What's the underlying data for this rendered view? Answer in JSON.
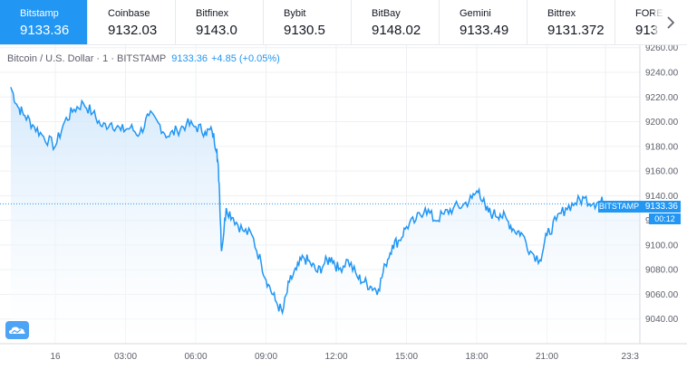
{
  "exchanges": [
    {
      "name": "Bitstamp",
      "price": "9133.36",
      "active": true
    },
    {
      "name": "Coinbase",
      "price": "9132.03",
      "active": false
    },
    {
      "name": "Bitfinex",
      "price": "9143.0",
      "active": false
    },
    {
      "name": "Bybit",
      "price": "9130.5",
      "active": false
    },
    {
      "name": "BitBay",
      "price": "9148.02",
      "active": false
    },
    {
      "name": "Gemini",
      "price": "9133.49",
      "active": false
    },
    {
      "name": "Bittrex",
      "price": "9131.372",
      "active": false
    },
    {
      "name": "FORE",
      "price": "913",
      "active": false
    }
  ],
  "nav_icon": "chevron-right-icon",
  "legend": {
    "symbol": "Bitcoin / U.S. Dollar · 1 · BITSTAMP",
    "value": "9133.36",
    "change": "+4.85 (+0.05%)"
  },
  "price_badge": {
    "exchange_label": "BITSTAMP",
    "price": "9133.36",
    "countdown": "00:12"
  },
  "logo_icon": "tradingview-logo-icon",
  "colors": {
    "accent": "#2196f3",
    "line": "#2196f3",
    "area_top": "#cfe6fb",
    "grid": "#eef0f3"
  },
  "chart_data": {
    "type": "area",
    "title": "Bitcoin / U.S. Dollar · 1 · BITSTAMP",
    "xlabel": "",
    "ylabel": "",
    "x_ticks": [
      "16",
      "03:00",
      "06:00",
      "09:00",
      "12:00",
      "15:00",
      "18:00",
      "21:00",
      "23:3"
    ],
    "y_ticks": [
      9040,
      9060,
      9080,
      9100,
      9120,
      9140,
      9160,
      9180,
      9200,
      9220,
      9240,
      9260
    ],
    "y_tick_labels": [
      "9040.00",
      "9060.00",
      "9080.00",
      "9100.00",
      "9120.00",
      "9140.00",
      "9160.00",
      "9180.00",
      "9200.00",
      "9220.00",
      "9240.00",
      "9260.00"
    ],
    "ylim": [
      9020,
      9262
    ],
    "x_hours": [
      -1.9,
      -1.6,
      -1.3,
      -0.9,
      -0.5,
      0,
      0.4,
      0.8,
      1.2,
      1.6,
      2.0,
      2.4,
      2.8,
      3.2,
      3.6,
      4.0,
      4.4,
      4.8,
      5.2,
      5.6,
      6.0,
      6.4,
      6.7,
      6.9,
      7.0,
      7.1,
      7.3,
      7.6,
      8.0,
      8.4,
      8.8,
      9.1,
      9.4,
      9.7,
      10.0,
      10.3,
      10.6,
      10.9,
      11.2,
      11.5,
      11.8,
      12.1,
      12.5,
      12.9,
      13.2,
      13.5,
      13.8,
      14.1,
      14.4,
      14.7,
      15.0,
      15.4,
      15.8,
      16.2,
      16.6,
      17.0,
      17.4,
      17.8,
      18.1,
      18.4,
      18.7,
      19.0,
      19.3,
      19.6,
      19.9,
      20.3,
      20.7,
      21.0,
      21.4,
      21.8,
      22.2,
      22.6,
      23.0,
      23.3,
      23.6
    ],
    "values": [
      9228,
      9212,
      9205,
      9196,
      9188,
      9180,
      9200,
      9210,
      9215,
      9207,
      9196,
      9199,
      9193,
      9195,
      9190,
      9205,
      9199,
      9188,
      9193,
      9198,
      9196,
      9192,
      9192,
      9178,
      9150,
      9095,
      9130,
      9122,
      9112,
      9108,
      9085,
      9068,
      9055,
      9045,
      9070,
      9080,
      9090,
      9085,
      9078,
      9085,
      9090,
      9080,
      9088,
      9074,
      9070,
      9066,
      9064,
      9084,
      9100,
      9104,
      9115,
      9120,
      9130,
      9120,
      9125,
      9130,
      9132,
      9138,
      9145,
      9128,
      9125,
      9125,
      9120,
      9112,
      9110,
      9095,
      9088,
      9108,
      9120,
      9130,
      9134,
      9138,
      9134,
      9135,
      9133
    ],
    "last_price": 9133.36
  }
}
